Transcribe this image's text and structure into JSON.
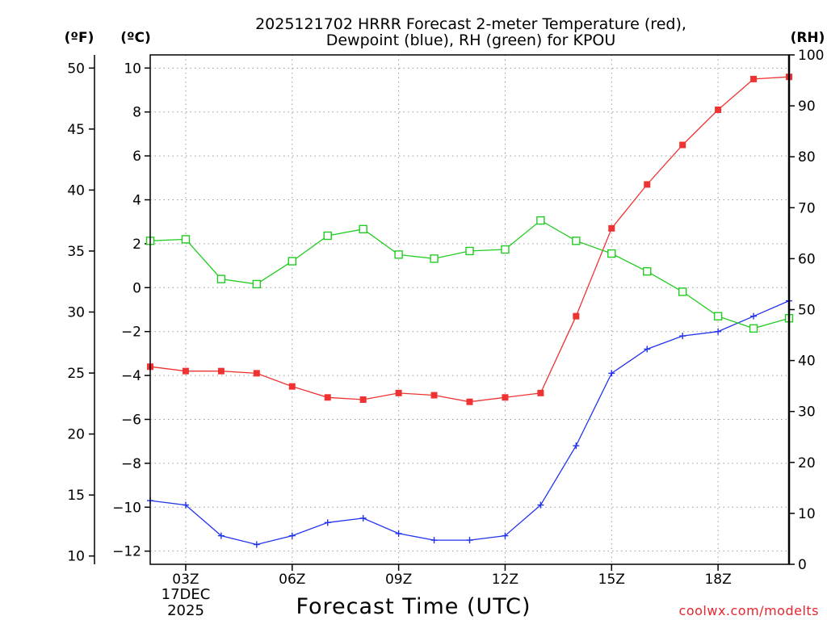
{
  "chart_data": {
    "type": "line",
    "title_line1": "2025121702 HRRR Forecast 2-meter Temperature (red),",
    "title_line2": "Dewpoint (blue), RH (green) for KPOU",
    "xlabel": "Forecast Time (UTC)",
    "credit": "coolwx.com/modelts",
    "date_label_1": "17DEC",
    "date_label_2": "2025",
    "left_axis_f_unit": "(ºF)",
    "left_axis_c_unit": "(ºC)",
    "right_axis_unit": "(RH)",
    "x_range": [
      2,
      20
    ],
    "x_ticks": [
      {
        "x": 3,
        "label": "03Z"
      },
      {
        "x": 6,
        "label": "06Z"
      },
      {
        "x": 9,
        "label": "09Z"
      },
      {
        "x": 12,
        "label": "12Z"
      },
      {
        "x": 15,
        "label": "15Z"
      },
      {
        "x": 18,
        "label": "18Z"
      }
    ],
    "celsius_range": [
      -12.6,
      10.6
    ],
    "celsius_ticks": [
      "10",
      "8",
      "6",
      "4",
      "2",
      "0",
      "−2",
      "−4",
      "−6",
      "−8",
      "−10",
      "−12"
    ],
    "celsius_tick_values": [
      10,
      8,
      6,
      4,
      2,
      0,
      -2,
      -4,
      -6,
      -8,
      -10,
      -12
    ],
    "fahrenheit_ticks": [
      "50",
      "45",
      "40",
      "35",
      "30",
      "25",
      "20",
      "15",
      "10"
    ],
    "fahrenheit_tick_values": [
      50,
      45,
      40,
      35,
      30,
      25,
      20,
      15,
      10
    ],
    "rh_range": [
      0,
      100
    ],
    "rh_ticks": [
      "100",
      "90",
      "80",
      "70",
      "60",
      "50",
      "40",
      "30",
      "20",
      "10",
      "0"
    ],
    "rh_tick_values": [
      100,
      90,
      80,
      70,
      60,
      50,
      40,
      30,
      20,
      10,
      0
    ],
    "x": [
      2,
      3,
      4,
      5,
      6,
      7,
      8,
      9,
      10,
      11,
      12,
      13,
      14,
      15,
      16,
      17,
      18,
      19,
      20
    ],
    "series": [
      {
        "name": "Temperature",
        "axis": "C",
        "color": "#ef3333",
        "marker": "filled-square",
        "values": [
          -3.6,
          -3.8,
          -3.8,
          -3.9,
          -4.5,
          -5.0,
          -5.1,
          -4.8,
          -4.9,
          -5.2,
          -5.0,
          -4.8,
          -1.3,
          2.7,
          4.7,
          6.5,
          8.1,
          9.5,
          9.6
        ]
      },
      {
        "name": "Dewpoint",
        "axis": "C",
        "color": "#2233ee",
        "marker": "plus",
        "values": [
          -9.7,
          -9.9,
          -11.3,
          -11.7,
          -11.3,
          -10.7,
          -10.5,
          -11.2,
          -11.5,
          -11.5,
          -11.3,
          -9.9,
          -7.2,
          -3.9,
          -2.8,
          -2.2,
          -2.0,
          -1.3,
          -0.6
        ]
      },
      {
        "name": "RH",
        "axis": "RH",
        "color": "#22cc22",
        "marker": "open-square",
        "values": [
          63.5,
          63.8,
          56.0,
          55.0,
          59.5,
          64.5,
          65.8,
          60.8,
          60.0,
          61.5,
          61.8,
          67.5,
          63.5,
          61.0,
          57.5,
          53.5,
          48.7,
          46.3,
          48.3
        ]
      }
    ]
  }
}
